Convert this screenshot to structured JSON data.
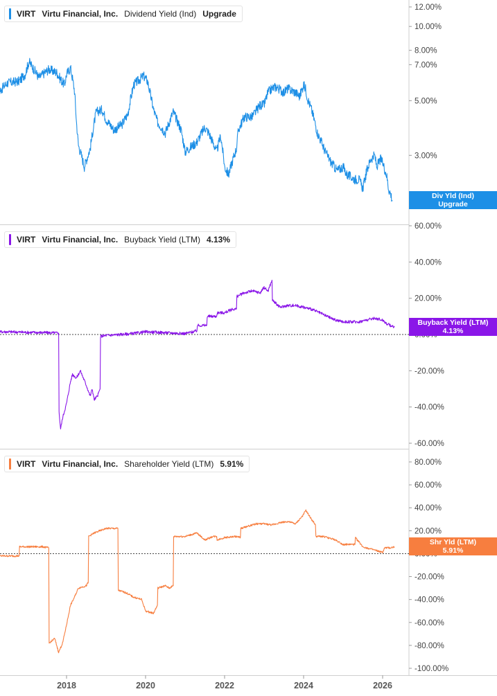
{
  "colors": {
    "blue": "#1d8fe6",
    "purple": "#8a16e8",
    "orange": "#f77e3f",
    "grid": "#d8d8d8",
    "text": "#555555"
  },
  "chart_data": [
    {
      "type": "line",
      "ticker": "VIRT",
      "company": "Virtu Financial, Inc.",
      "metric": "Dividend Yield (Ind)",
      "current": "Upgrade",
      "badge": [
        "Div Yld (Ind)",
        "Upgrade"
      ],
      "scale": "log",
      "ylim": [
        0.019,
        0.13
      ],
      "y_ticks": [
        "12.00%",
        "10.00%",
        "8.00%",
        "7.00%",
        "5.00%",
        "3.00%",
        "2.00%"
      ],
      "y_tick_values": [
        0.12,
        0.1,
        0.08,
        0.07,
        0.05,
        0.03,
        0.02
      ],
      "series": [
        {
          "x": [
            2016.1,
            2016.5,
            2016.8,
            2016.95,
            2017.05,
            2017.3,
            2017.55,
            2017.75,
            2017.85,
            2017.95,
            2018.0,
            2018.1,
            2018.2,
            2018.25,
            2018.3,
            2018.45,
            2018.6,
            2018.75,
            2018.9,
            2019.0,
            2019.2,
            2019.4,
            2019.55,
            2019.7,
            2019.85,
            2019.95,
            2020.05,
            2020.1,
            2020.2,
            2020.3,
            2020.5,
            2020.7,
            2020.9,
            2021.0,
            2021.2,
            2021.3,
            2021.5,
            2021.6,
            2021.8,
            2021.9,
            2022.0,
            2022.1,
            2022.3,
            2022.35,
            2022.5,
            2022.7,
            2022.9,
            2023.0,
            2023.1,
            2023.2,
            2023.3,
            2023.5,
            2023.6,
            2023.8,
            2023.9,
            2024.0,
            2024.05,
            2024.1,
            2024.2,
            2024.35,
            2024.55,
            2024.7,
            2024.85,
            2025.0,
            2025.1,
            2025.3,
            2025.4,
            2025.5,
            2025.6,
            2025.7,
            2025.8,
            2025.85,
            2025.95,
            2026.0,
            2026.1,
            2026.15,
            2026.2,
            2026.25
          ],
          "values": [
            0.05,
            0.059,
            0.06,
            0.064,
            0.072,
            0.062,
            0.067,
            0.065,
            0.061,
            0.058,
            0.064,
            0.068,
            0.055,
            0.041,
            0.033,
            0.027,
            0.032,
            0.045,
            0.046,
            0.042,
            0.038,
            0.04,
            0.044,
            0.058,
            0.061,
            0.063,
            0.06,
            0.055,
            0.046,
            0.041,
            0.037,
            0.045,
            0.038,
            0.031,
            0.033,
            0.034,
            0.039,
            0.037,
            0.031,
            0.036,
            0.027,
            0.025,
            0.032,
            0.038,
            0.043,
            0.043,
            0.048,
            0.048,
            0.054,
            0.056,
            0.057,
            0.054,
            0.056,
            0.054,
            0.052,
            0.058,
            0.056,
            0.051,
            0.046,
            0.037,
            0.031,
            0.028,
            0.026,
            0.027,
            0.025,
            0.024,
            0.024,
            0.022,
            0.026,
            0.029,
            0.03,
            0.027,
            0.029,
            0.028,
            0.025,
            0.022,
            0.021,
            0.0196
          ]
        }
      ]
    },
    {
      "type": "line",
      "ticker": "VIRT",
      "company": "Virtu Financial, Inc.",
      "metric": "Buyback Yield (LTM)",
      "current": "4.13%",
      "badge": [
        "Buyback Yield (LTM)",
        "4.13%"
      ],
      "ylim": [
        -62,
        68
      ],
      "y_ticks": [
        "60.00%",
        "40.00%",
        "20.00%",
        "0.00%",
        "-20.00%",
        "-40.00%",
        "-60.00%"
      ],
      "y_tick_values": [
        60,
        40,
        20,
        0,
        -20,
        -40,
        -60
      ],
      "zero_line": true,
      "series": [
        {
          "x": [
            2016.0,
            2016.2,
            2016.21,
            2016.5,
            2017.0,
            2017.55,
            2017.8,
            2017.81,
            2017.85,
            2017.9,
            2018.0,
            2018.1,
            2018.15,
            2018.25,
            2018.35,
            2018.5,
            2018.6,
            2018.65,
            2018.7,
            2018.78,
            2018.85,
            2018.86,
            2019.0,
            2019.5,
            2019.8,
            2020.0,
            2020.5,
            2021.0,
            2021.1,
            2021.3,
            2021.31,
            2021.55,
            2021.56,
            2021.8,
            2021.81,
            2022.0,
            2022.2,
            2022.3,
            2022.31,
            2022.5,
            2022.7,
            2022.9,
            2023.0,
            2023.1,
            2023.2,
            2023.21,
            2023.4,
            2023.6,
            2023.8,
            2024.0,
            2024.2,
            2024.4,
            2024.6,
            2024.8,
            2025.0,
            2025.2,
            2025.4,
            2025.6,
            2025.8,
            2026.0,
            2026.1,
            2026.2,
            2026.3
          ],
          "values": [
            -6,
            -6,
            1.5,
            1.5,
            1.2,
            1.0,
            0.8,
            -43,
            -52,
            -46,
            -38,
            -26,
            -22,
            -24,
            -20,
            -28,
            -34,
            -30,
            -36,
            -34,
            -30,
            -1,
            -0.5,
            0.2,
            0.8,
            1.5,
            1.0,
            0.5,
            1.0,
            2.0,
            5,
            5,
            10,
            10,
            12,
            12,
            14,
            14,
            21,
            23,
            24,
            23,
            26,
            24,
            30,
            19,
            15,
            16,
            16,
            15,
            14,
            12,
            10,
            8,
            7,
            7,
            7,
            8,
            9,
            8,
            6,
            5,
            4.13
          ]
        }
      ]
    },
    {
      "type": "line",
      "ticker": "VIRT",
      "company": "Virtu Financial, Inc.",
      "metric": "Shareholder Yield (LTM)",
      "current": "5.91%",
      "badge": [
        "Shr Yld (LTM)",
        "5.91%"
      ],
      "ylim": [
        -102,
        90
      ],
      "y_ticks": [
        "80.00%",
        "60.00%",
        "40.00%",
        "20.00%",
        "0.00%",
        "-20.00%",
        "-40.00%",
        "-60.00%",
        "-80.00%",
        "-100.00%"
      ],
      "y_tick_values": [
        80,
        60,
        40,
        20,
        0,
        -20,
        -40,
        -60,
        -80,
        -100
      ],
      "zero_line": true,
      "series": [
        {
          "x": [
            2016.0,
            2016.2,
            2016.21,
            2016.5,
            2016.8,
            2016.81,
            2017.2,
            2017.4,
            2017.55,
            2017.56,
            2017.7,
            2017.8,
            2017.9,
            2018.0,
            2018.1,
            2018.2,
            2018.3,
            2018.5,
            2018.55,
            2018.56,
            2018.7,
            2018.85,
            2019.0,
            2019.2,
            2019.3,
            2019.31,
            2019.5,
            2019.7,
            2019.9,
            2020.0,
            2020.2,
            2020.3,
            2020.31,
            2020.5,
            2020.6,
            2020.7,
            2020.71,
            2021.0,
            2021.3,
            2021.5,
            2021.51,
            2021.7,
            2021.8,
            2021.81,
            2022.0,
            2022.3,
            2022.4,
            2022.41,
            2022.6,
            2022.8,
            2023.0,
            2023.2,
            2023.4,
            2023.6,
            2023.8,
            2024.0,
            2024.05,
            2024.2,
            2024.3,
            2024.31,
            2024.5,
            2024.8,
            2025.0,
            2025.2,
            2025.3,
            2025.31,
            2025.5,
            2025.8,
            2026.0,
            2026.05,
            2026.2,
            2026.3
          ],
          "values": [
            5,
            5,
            -2,
            -2,
            -2,
            6,
            6,
            6,
            5,
            -78,
            -74,
            -86,
            -78,
            -62,
            -45,
            -38,
            -30,
            -28,
            -25,
            15,
            18,
            20,
            22,
            22,
            22,
            -32,
            -34,
            -38,
            -40,
            -50,
            -52,
            -45,
            -30,
            -28,
            -30,
            -28,
            15,
            15,
            18,
            12,
            12,
            15,
            15,
            12,
            14,
            15,
            14,
            22,
            24,
            26,
            26,
            25,
            27,
            28,
            26,
            34,
            38,
            30,
            25,
            15,
            15,
            12,
            8,
            8,
            8,
            14,
            6,
            3,
            1,
            5,
            5,
            5.91
          ]
        }
      ]
    }
  ],
  "x_axis": {
    "labels": [
      "2018",
      "2020",
      "2022",
      "2024",
      "2026"
    ],
    "values": [
      2018,
      2020,
      2022,
      2024,
      2026
    ],
    "xlim": [
      2016.35,
      2026.6
    ]
  }
}
